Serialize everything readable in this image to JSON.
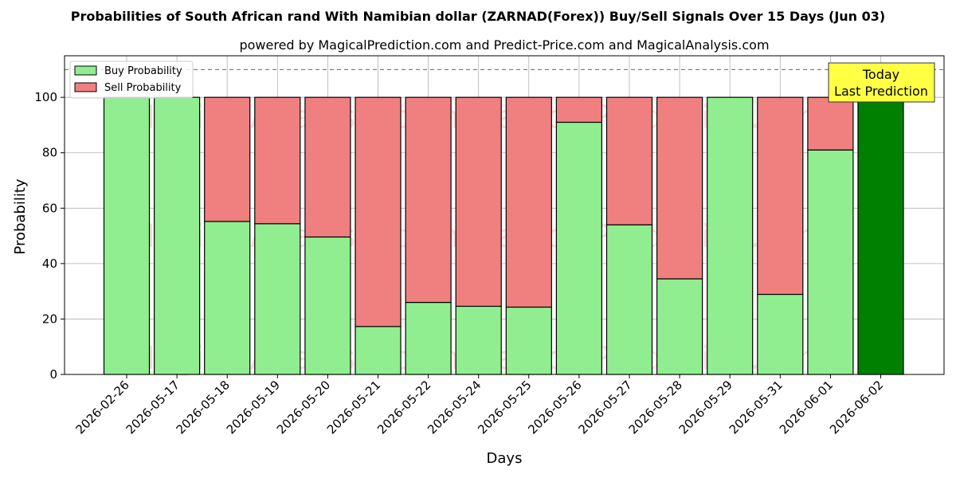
{
  "chart_data": {
    "type": "bar",
    "title": "Probabilities of South African rand With Namibian dollar (ZARNAD(Forex)) Buy/Sell Signals Over 15 Days (Jun 03)",
    "subtitle": "powered by MagicalPrediction.com and Predict-Price.com and MagicalAnalysis.com",
    "xlabel": "Days",
    "ylabel": "Probability",
    "ylim": [
      0,
      115
    ],
    "yticks": [
      0,
      20,
      40,
      60,
      80,
      100
    ],
    "reference_line": 110,
    "grid": true,
    "legend_position": "top-left",
    "categories": [
      "2026-02-26",
      "2026-05-17",
      "2026-05-18",
      "2026-05-19",
      "2026-05-20",
      "2026-05-21",
      "2026-05-22",
      "2026-05-24",
      "2026-05-25",
      "2026-05-26",
      "2026-05-27",
      "2026-05-28",
      "2026-05-29",
      "2026-05-31",
      "2026-06-01",
      "2026-06-02"
    ],
    "series": [
      {
        "name": "Buy Probability",
        "color": "#90ee90",
        "values": [
          100,
          100,
          55.2,
          54.4,
          49.6,
          17.3,
          26.0,
          24.6,
          24.3,
          91.0,
          54.0,
          34.5,
          100,
          28.9,
          81.0,
          100
        ]
      },
      {
        "name": "Sell Probability",
        "color": "#f08080",
        "values": [
          0,
          0,
          44.8,
          45.6,
          50.4,
          82.7,
          74.0,
          75.4,
          75.7,
          9.0,
          46.0,
          65.5,
          0,
          71.1,
          19.0,
          0
        ]
      }
    ],
    "highlight": {
      "category": "2026-06-02",
      "color": "#008000",
      "label_line1": "Today",
      "label_line2": "Last Prediction",
      "label_bg": "#ffff44"
    },
    "watermark": "MagicalAnalysis.com    MagicalPrediction.com"
  }
}
